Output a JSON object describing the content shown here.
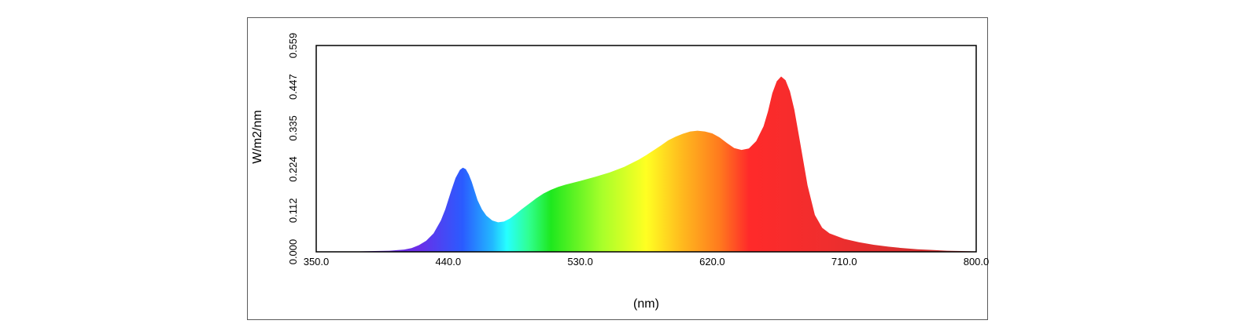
{
  "chart_data": {
    "type": "area",
    "title": "",
    "xlabel": "(nm)",
    "ylabel": "W/m2/nm",
    "xlim": [
      350.0,
      800.0
    ],
    "ylim": [
      0.0,
      0.559
    ],
    "x_ticks": [
      "350.0",
      "440.0",
      "530.0",
      "620.0",
      "710.0",
      "800.0"
    ],
    "y_ticks": [
      "0.000",
      "0.112",
      "0.224",
      "0.335",
      "0.447",
      "0.559"
    ],
    "grid": false,
    "legend": "none",
    "fill": "visible-spectrum gradient",
    "series": [
      {
        "x": [
          350,
          360,
          370,
          380,
          390,
          400,
          410,
          415,
          420,
          425,
          430,
          435,
          438,
          442,
          445,
          448,
          450,
          452,
          454,
          456,
          458,
          460,
          463,
          466,
          470,
          474,
          478,
          482,
          486,
          490,
          495,
          500,
          505,
          510,
          515,
          520,
          525,
          530,
          540,
          550,
          560,
          570,
          575,
          580,
          585,
          590,
          595,
          600,
          605,
          610,
          615,
          620,
          625,
          630,
          635,
          640,
          645,
          650,
          655,
          658,
          661,
          664,
          667,
          670,
          673,
          676,
          680,
          685,
          690,
          695,
          700,
          710,
          720,
          730,
          740,
          750,
          760,
          770,
          780,
          790,
          800
        ],
        "y": [
          0.001,
          0.001,
          0.001,
          0.001,
          0.002,
          0.003,
          0.006,
          0.01,
          0.018,
          0.03,
          0.05,
          0.085,
          0.115,
          0.165,
          0.2,
          0.222,
          0.228,
          0.224,
          0.21,
          0.19,
          0.165,
          0.14,
          0.115,
          0.098,
          0.085,
          0.08,
          0.082,
          0.09,
          0.102,
          0.115,
          0.13,
          0.145,
          0.158,
          0.168,
          0.176,
          0.182,
          0.187,
          0.192,
          0.203,
          0.215,
          0.23,
          0.25,
          0.262,
          0.275,
          0.288,
          0.302,
          0.312,
          0.32,
          0.326,
          0.328,
          0.326,
          0.321,
          0.31,
          0.295,
          0.281,
          0.276,
          0.28,
          0.3,
          0.34,
          0.38,
          0.43,
          0.462,
          0.475,
          0.465,
          0.435,
          0.385,
          0.295,
          0.18,
          0.1,
          0.065,
          0.05,
          0.035,
          0.026,
          0.019,
          0.014,
          0.01,
          0.007,
          0.005,
          0.003,
          0.002,
          0.001
        ]
      }
    ]
  },
  "colors": {
    "spectrum_stops": [
      {
        "nm": 380,
        "color": "#6a2ad8"
      },
      {
        "nm": 420,
        "color": "#6a2ee8"
      },
      {
        "nm": 450,
        "color": "#2a5cff"
      },
      {
        "nm": 470,
        "color": "#22b8ff"
      },
      {
        "nm": 480,
        "color": "#26ffff"
      },
      {
        "nm": 495,
        "color": "#30ff90"
      },
      {
        "nm": 510,
        "color": "#1ee81e"
      },
      {
        "nm": 545,
        "color": "#a8ff2a"
      },
      {
        "nm": 575,
        "color": "#ffff22"
      },
      {
        "nm": 600,
        "color": "#ffb81e"
      },
      {
        "nm": 625,
        "color": "#ff7a1e"
      },
      {
        "nm": 645,
        "color": "#ff2a2a"
      },
      {
        "nm": 700,
        "color": "#ef2e2e"
      },
      {
        "nm": 800,
        "color": "#c43030"
      }
    ],
    "axis": "#000000",
    "frame": "#5a5a5a"
  }
}
